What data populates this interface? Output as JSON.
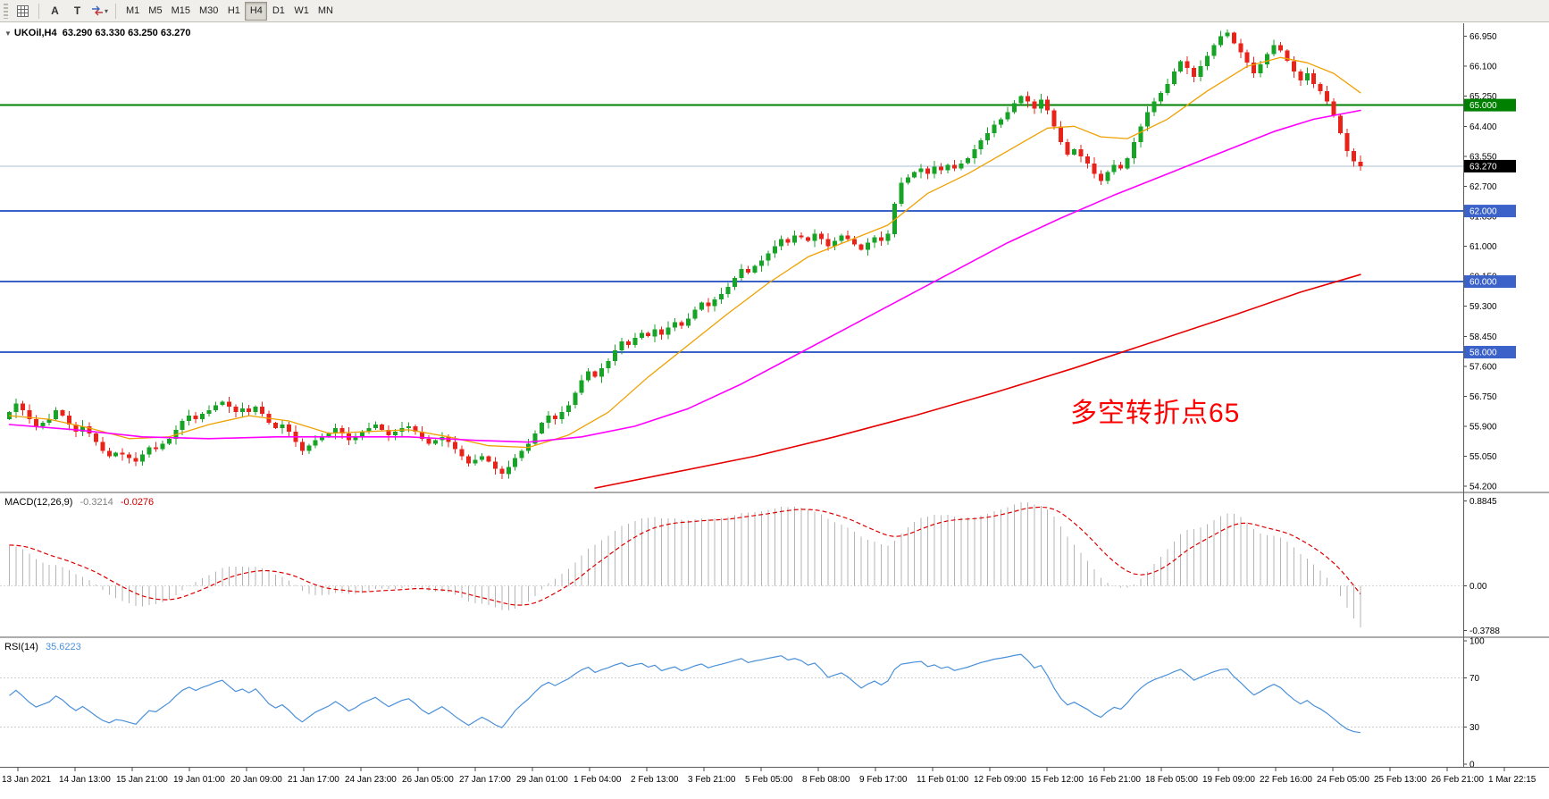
{
  "toolbar": {
    "icon_a": "A",
    "icon_t": "T",
    "caret": "▾",
    "timeframes": [
      {
        "label": "M1",
        "active": false
      },
      {
        "label": "M5",
        "active": false
      },
      {
        "label": "M15",
        "active": false
      },
      {
        "label": "M30",
        "active": false
      },
      {
        "label": "H1",
        "active": false
      },
      {
        "label": "H4",
        "active": true
      },
      {
        "label": "D1",
        "active": false
      },
      {
        "label": "W1",
        "active": false
      },
      {
        "label": "MN",
        "active": false
      }
    ]
  },
  "chart_data": {
    "type": "candlestick",
    "symbol": "UKOil,H4",
    "ohlc_display": "63.290 63.330 63.250 63.270",
    "annotation": {
      "text": "多空转折点65",
      "color": "#ff0000",
      "bar": 160,
      "price": 56.3
    },
    "price_axis": {
      "min": 54.05,
      "max": 67.32,
      "labels": [
        "66.950",
        "66.100",
        "65.250",
        "64.400",
        "63.550",
        "62.700",
        "61.850",
        "61.000",
        "60.150",
        "59.300",
        "58.450",
        "57.600",
        "56.750",
        "55.900",
        "55.050",
        "54.200"
      ]
    },
    "x_labels": [
      "13 Jan 2021",
      "14 Jan 13:00",
      "15 Jan 21:00",
      "19 Jan 01:00",
      "20 Jan 09:00",
      "21 Jan 17:00",
      "24 Jan 23:00",
      "26 Jan 05:00",
      "27 Jan 17:00",
      "29 Jan 01:00",
      "1 Feb 04:00",
      "2 Feb 13:00",
      "3 Feb 21:00",
      "5 Feb 05:00",
      "8 Feb 08:00",
      "9 Feb 17:00",
      "11 Feb 01:00",
      "12 Feb 09:00",
      "15 Feb 12:00",
      "16 Feb 21:00",
      "18 Feb 05:00",
      "19 Feb 09:00",
      "22 Feb 16:00",
      "24 Feb 05:00",
      "25 Feb 13:00",
      "26 Feb 21:00",
      "1 Mar 22:15"
    ],
    "levels": [
      {
        "price": 65.0,
        "label": "65.000",
        "color": "#008000",
        "width": 2
      },
      {
        "price": 62.0,
        "label": "62.000",
        "color": "#3a62c8",
        "width": 2
      },
      {
        "price": 60.0,
        "label": "60.000",
        "color": "#3a62c8",
        "width": 2
      },
      {
        "price": 58.0,
        "label": "58.000",
        "color": "#3a62c8",
        "width": 2
      }
    ],
    "bid": {
      "price": 63.27,
      "label": "63.270",
      "line_color": "#a9bfd4",
      "label_bg": "#000000"
    },
    "candles": {
      "open_first": 56.1,
      "up_color": "#17a326",
      "down_color": "#e8231a",
      "closes": [
        56.3,
        56.55,
        56.35,
        56.1,
        55.9,
        56.0,
        56.1,
        56.35,
        56.2,
        55.95,
        55.75,
        55.9,
        55.7,
        55.45,
        55.2,
        55.05,
        55.15,
        55.1,
        55.0,
        54.9,
        55.1,
        55.3,
        55.25,
        55.4,
        55.55,
        55.8,
        56.05,
        56.2,
        56.1,
        56.25,
        56.35,
        56.5,
        56.6,
        56.45,
        56.3,
        56.4,
        56.3,
        56.45,
        56.25,
        56.0,
        55.85,
        55.95,
        55.75,
        55.45,
        55.2,
        55.35,
        55.5,
        55.6,
        55.7,
        55.85,
        55.7,
        55.5,
        55.6,
        55.75,
        55.85,
        55.95,
        55.8,
        55.65,
        55.75,
        55.85,
        55.9,
        55.75,
        55.55,
        55.4,
        55.5,
        55.6,
        55.45,
        55.25,
        55.05,
        54.85,
        54.95,
        55.05,
        54.9,
        54.7,
        54.55,
        54.75,
        55.0,
        55.2,
        55.4,
        55.7,
        56.0,
        56.2,
        56.1,
        56.3,
        56.5,
        56.85,
        57.2,
        57.45,
        57.3,
        57.55,
        57.75,
        58.05,
        58.3,
        58.2,
        58.4,
        58.55,
        58.45,
        58.65,
        58.5,
        58.7,
        58.85,
        58.75,
        58.95,
        59.2,
        59.4,
        59.3,
        59.5,
        59.65,
        59.85,
        60.1,
        60.35,
        60.25,
        60.45,
        60.6,
        60.8,
        61.0,
        61.2,
        61.1,
        61.3,
        61.25,
        61.15,
        61.35,
        61.2,
        61.0,
        61.15,
        61.3,
        61.2,
        61.05,
        60.9,
        61.1,
        61.25,
        61.15,
        61.35,
        62.2,
        62.8,
        62.95,
        63.1,
        63.2,
        63.05,
        63.25,
        63.15,
        63.3,
        63.2,
        63.35,
        63.5,
        63.75,
        64.0,
        64.2,
        64.45,
        64.6,
        64.8,
        65.05,
        65.25,
        65.1,
        64.9,
        65.15,
        64.85,
        64.4,
        63.95,
        63.6,
        63.75,
        63.55,
        63.35,
        63.05,
        62.85,
        63.1,
        63.3,
        63.2,
        63.5,
        63.95,
        64.4,
        64.8,
        65.1,
        65.35,
        65.6,
        65.95,
        66.25,
        66.05,
        65.8,
        66.1,
        66.4,
        66.7,
        66.95,
        67.05,
        66.75,
        66.5,
        66.2,
        65.9,
        66.15,
        66.45,
        66.7,
        66.55,
        66.25,
        65.95,
        65.7,
        65.9,
        65.6,
        65.4,
        65.1,
        64.7,
        64.2,
        63.7,
        63.4,
        63.27
      ]
    },
    "moving_averages": [
      {
        "name": "ma-fast-orange",
        "color": "#f0a000",
        "width": 1.3,
        "points": [
          [
            0,
            56.2
          ],
          [
            6,
            56.1
          ],
          [
            12,
            55.85
          ],
          [
            18,
            55.55
          ],
          [
            24,
            55.6
          ],
          [
            30,
            55.95
          ],
          [
            36,
            56.2
          ],
          [
            42,
            56.05
          ],
          [
            48,
            55.7
          ],
          [
            54,
            55.75
          ],
          [
            60,
            55.8
          ],
          [
            66,
            55.6
          ],
          [
            72,
            55.35
          ],
          [
            78,
            55.3
          ],
          [
            84,
            55.65
          ],
          [
            90,
            56.3
          ],
          [
            96,
            57.3
          ],
          [
            102,
            58.2
          ],
          [
            108,
            59.1
          ],
          [
            114,
            59.95
          ],
          [
            120,
            60.7
          ],
          [
            126,
            61.15
          ],
          [
            132,
            61.6
          ],
          [
            138,
            62.5
          ],
          [
            144,
            63.05
          ],
          [
            150,
            63.7
          ],
          [
            156,
            64.35
          ],
          [
            160,
            64.4
          ],
          [
            164,
            64.1
          ],
          [
            168,
            64.05
          ],
          [
            174,
            64.6
          ],
          [
            180,
            65.4
          ],
          [
            186,
            66.1
          ],
          [
            191,
            66.35
          ],
          [
            195,
            66.2
          ],
          [
            199,
            65.9
          ],
          [
            203,
            65.35
          ]
        ]
      },
      {
        "name": "ma-mid-magenta",
        "color": "#ff00ff",
        "width": 1.6,
        "points": [
          [
            0,
            55.95
          ],
          [
            10,
            55.8
          ],
          [
            20,
            55.6
          ],
          [
            30,
            55.55
          ],
          [
            40,
            55.6
          ],
          [
            50,
            55.6
          ],
          [
            60,
            55.6
          ],
          [
            70,
            55.5
          ],
          [
            78,
            55.45
          ],
          [
            86,
            55.6
          ],
          [
            94,
            55.9
          ],
          [
            102,
            56.4
          ],
          [
            110,
            57.1
          ],
          [
            118,
            57.9
          ],
          [
            126,
            58.7
          ],
          [
            134,
            59.5
          ],
          [
            142,
            60.3
          ],
          [
            150,
            61.1
          ],
          [
            158,
            61.8
          ],
          [
            166,
            62.45
          ],
          [
            174,
            63.05
          ],
          [
            182,
            63.65
          ],
          [
            190,
            64.25
          ],
          [
            196,
            64.6
          ],
          [
            203,
            64.85
          ]
        ]
      },
      {
        "name": "ma-slow-red",
        "color": "#e60000",
        "width": 1.6,
        "points": [
          [
            88,
            54.15
          ],
          [
            100,
            54.6
          ],
          [
            112,
            55.05
          ],
          [
            124,
            55.6
          ],
          [
            136,
            56.2
          ],
          [
            148,
            56.85
          ],
          [
            160,
            57.55
          ],
          [
            172,
            58.3
          ],
          [
            184,
            59.05
          ],
          [
            194,
            59.7
          ],
          [
            203,
            60.2
          ]
        ]
      }
    ],
    "indicators": {
      "macd": {
        "label": "MACD(12,26,9)",
        "value_main": "-0.3214",
        "value_signal": "-0.0276",
        "axis": [
          "0.8845",
          "0.00",
          "-0.3788"
        ],
        "hist_color": "#b4b4b4",
        "signal_color": "#dd0000",
        "fast": 12,
        "slow": 26,
        "signal": 9,
        "seed_offset": 0.5
      },
      "rsi": {
        "label": "RSI(14)",
        "value": "35.6223",
        "axis": [
          "100",
          "70",
          "30",
          "0"
        ],
        "levels": [
          70,
          30
        ],
        "line_color": "#4a90d9",
        "period": 14
      }
    }
  }
}
